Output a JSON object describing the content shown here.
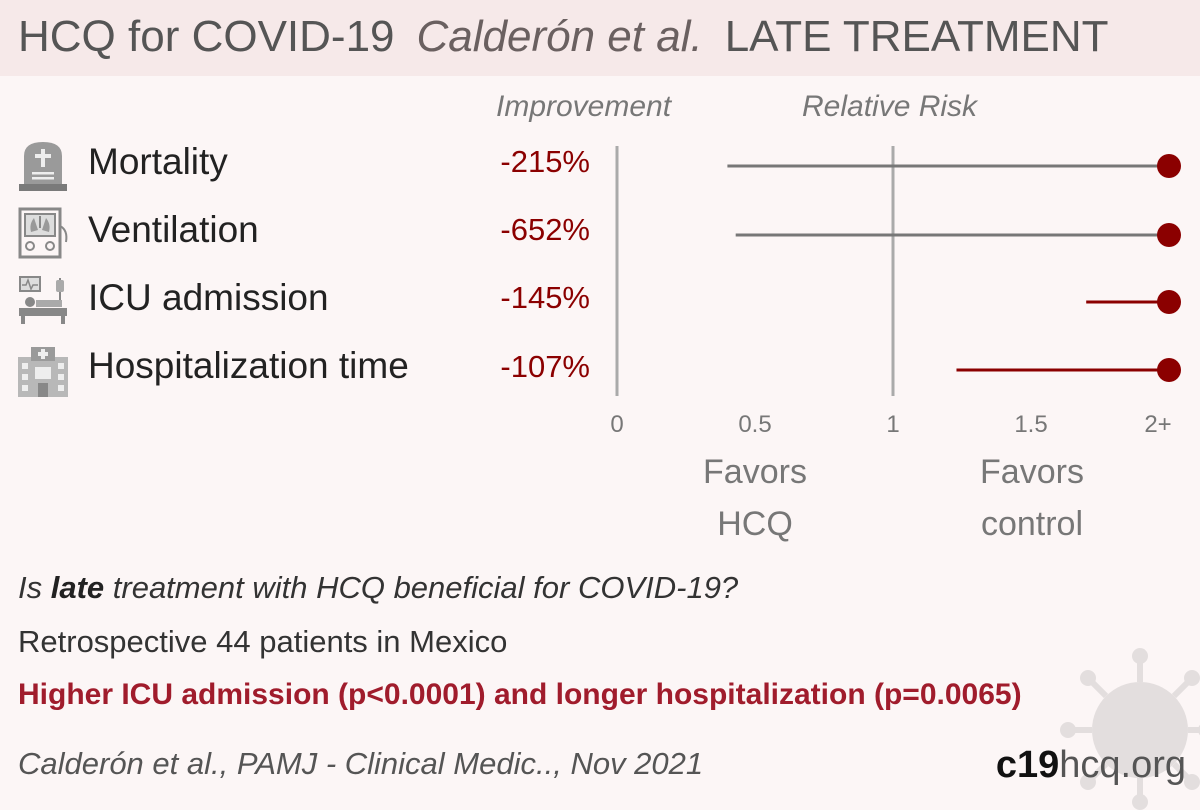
{
  "header": {
    "title_left": "HCQ for COVID-19",
    "title_mid": "Calderón et al.",
    "title_right": "LATE TREATMENT"
  },
  "columns": {
    "improvement": "Improvement",
    "relative_risk": "Relative Risk"
  },
  "outcomes": [
    {
      "label": "Mortality",
      "improvement": "-215%",
      "icon": "gravestone-icon"
    },
    {
      "label": "Ventilation",
      "improvement": "-652%",
      "icon": "ventilator-icon"
    },
    {
      "label": "ICU admission",
      "improvement": "-145%",
      "icon": "icu-bed-icon"
    },
    {
      "label": "Hospitalization time",
      "improvement": "-107%",
      "icon": "hospital-icon"
    }
  ],
  "chart_data": {
    "type": "scatter",
    "xlabel": "",
    "x_ticks": [
      "0",
      "0.5",
      "1",
      "1.5",
      "2+"
    ],
    "xlim": [
      0,
      2
    ],
    "reference_line": 1,
    "points": [
      {
        "category": "Mortality",
        "rr": 2,
        "ci_low": 0.4,
        "ci_high": 2,
        "color": "#8b0000",
        "ci_color": "#777777"
      },
      {
        "category": "Ventilation",
        "rr": 2,
        "ci_low": 0.43,
        "ci_high": 2,
        "color": "#8b0000",
        "ci_color": "#777777"
      },
      {
        "category": "ICU admission",
        "rr": 2,
        "ci_low": 1.7,
        "ci_high": 2,
        "color": "#8b0000",
        "ci_color": "#8b0000"
      },
      {
        "category": "Hospitalization time",
        "rr": 2,
        "ci_low": 1.23,
        "ci_high": 2,
        "color": "#8b0000",
        "ci_color": "#8b0000"
      }
    ],
    "favors_left": [
      "Favors",
      "HCQ"
    ],
    "favors_right": [
      "Favors",
      "control"
    ]
  },
  "question": {
    "pre": "Is ",
    "bold": "late",
    "post": " treatment with HCQ beneficial for COVID-19?"
  },
  "description": "Retrospective 44 patients in Mexico",
  "conclusion": "Higher ICU admission (p<0.0001) and longer hospitalization (p=0.0065)",
  "citation": "Calderón et al., PAMJ - Clinical Medic.., Nov 2021",
  "brand": {
    "bold": "c19",
    "rest": "hcq.org"
  },
  "colors": {
    "accent": "#8b0000",
    "conclusion": "#a01c2c",
    "background": "#fcf6f6",
    "header_bg": "#f6e9e9"
  }
}
